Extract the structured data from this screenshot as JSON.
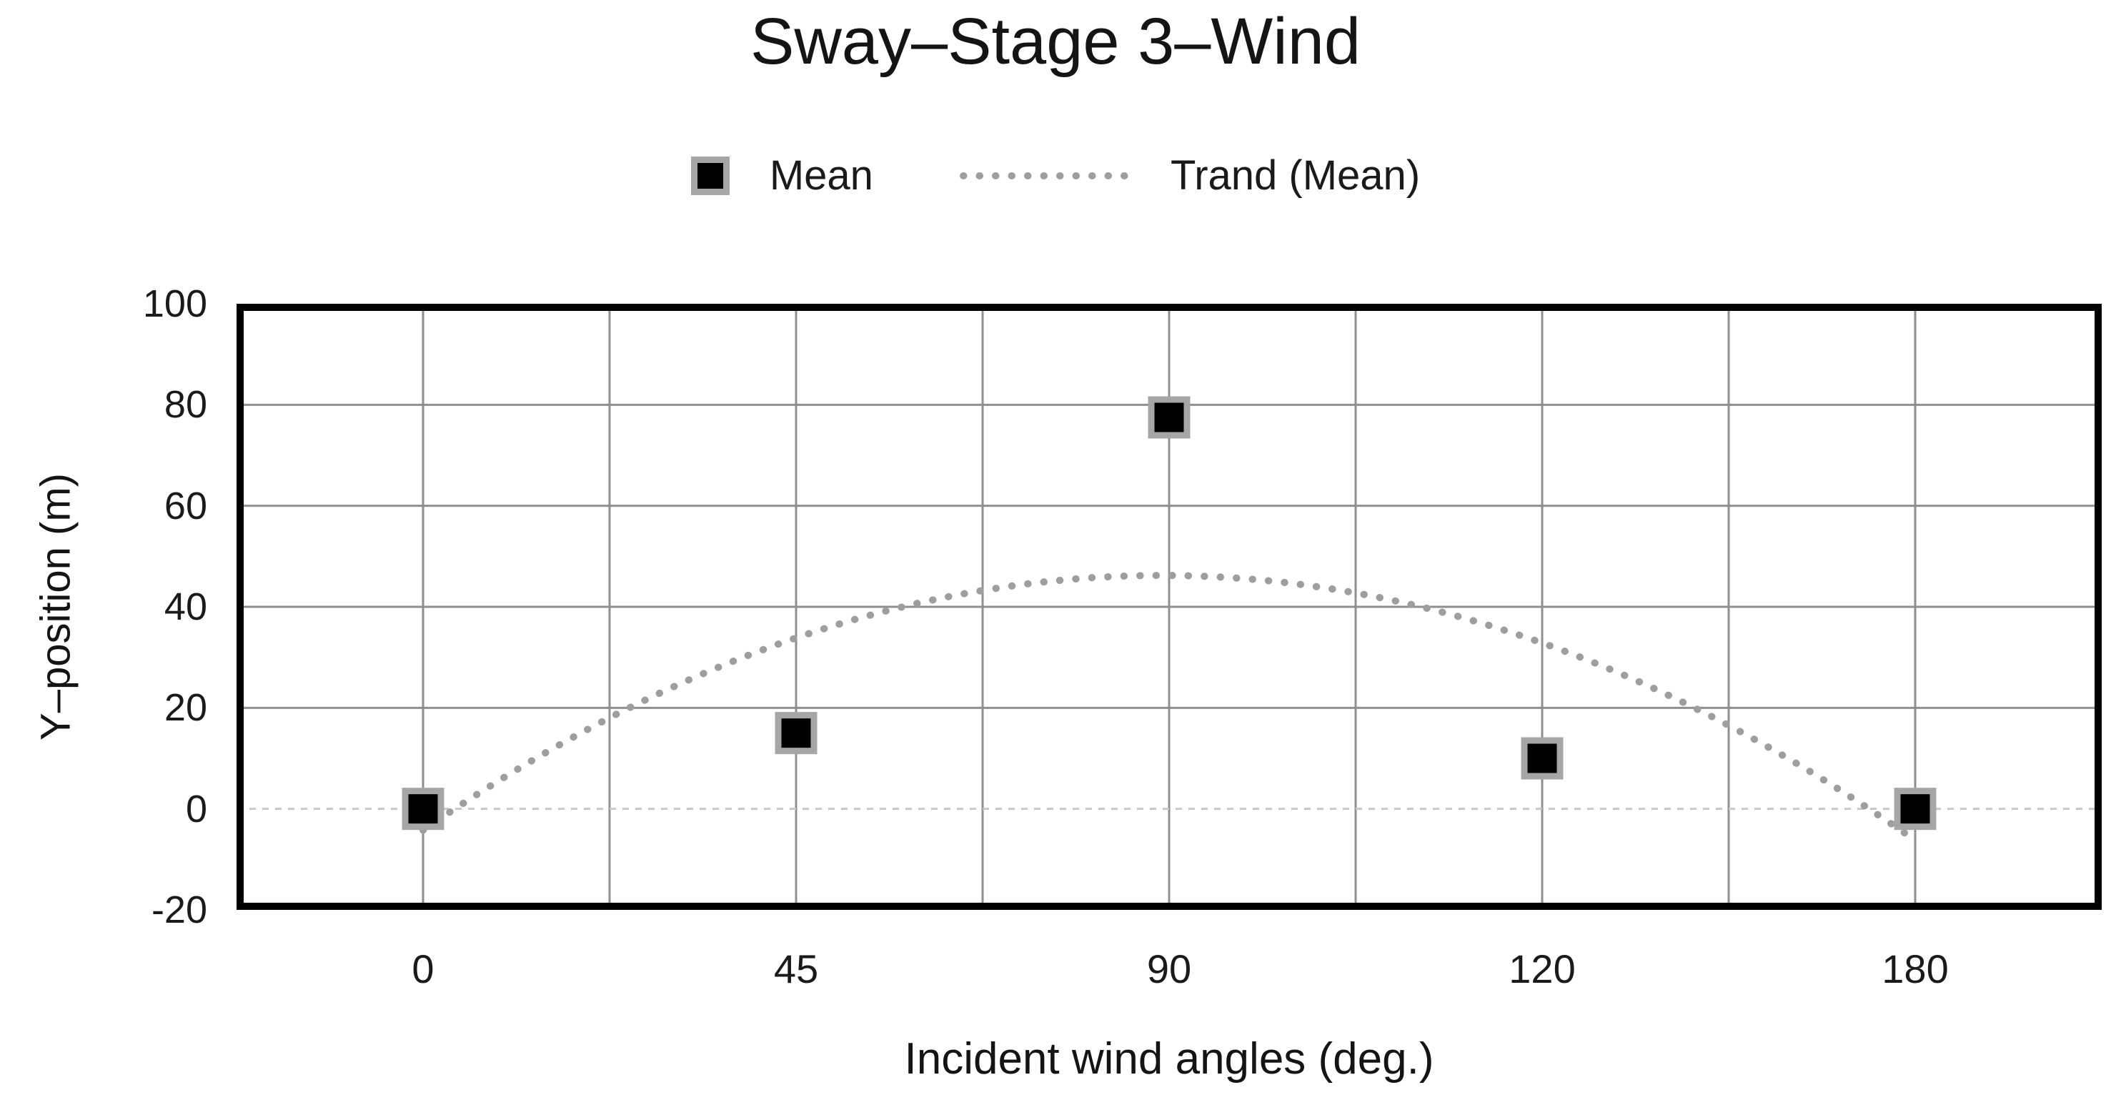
{
  "chart_data": {
    "type": "scatter",
    "title": "Sway–Stage 3–Wind",
    "xlabel": "Incident wind angles (deg.)",
    "ylabel": "Y–position (m)",
    "categories": [
      "0",
      "45",
      "90",
      "120",
      "180"
    ],
    "series": [
      {
        "name": "Mean",
        "marker": "black-square",
        "values": [
          0,
          15,
          77.5,
          10,
          0
        ]
      },
      {
        "name": "Trand (Mean)",
        "style": "dotted-line",
        "trend_poly": {
          "a": 46.21,
          "b": -0.5,
          "c": -12.86,
          "note": "y = a + b*t + c*t^2, t = category index - 2"
        },
        "values_at_categories": [
          -4.2,
          33.9,
          46.2,
          32.9,
          -6.2
        ],
        "peak": 46
      }
    ],
    "ylim": [
      -20,
      100
    ],
    "yticks": [
      100,
      80,
      60,
      40,
      20,
      0,
      -20
    ],
    "ytick_step": 20,
    "grid": "both",
    "legend_position": "top-center",
    "colors": {
      "marker_fill": "#000000",
      "marker_border": "#a6a6a6",
      "trend": "#9e9e9e",
      "gridline": "#8f8f8f",
      "zero_gridline": "#c8c8c8",
      "axis_border": "#000000",
      "text": "#1a1a1a",
      "background": "#ffffff"
    }
  }
}
